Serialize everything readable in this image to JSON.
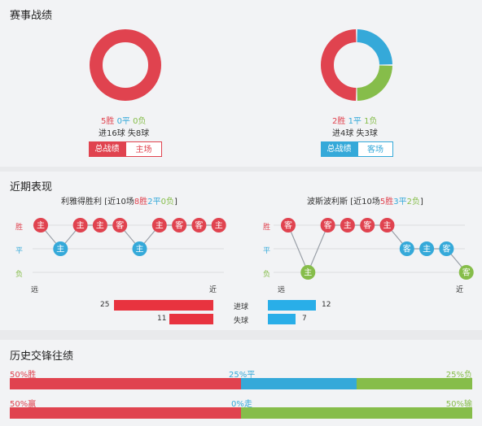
{
  "colors": {
    "win": "#e0434f",
    "draw": "#35a9d9",
    "loss": "#86bd4a"
  },
  "record": {
    "title": "赛事战绩",
    "left": {
      "wins": "5胜",
      "draws": "0平",
      "losses": "0负",
      "goals": "进16球 失8球",
      "tab_total": "总战绩",
      "tab_side": "主场",
      "donut": {
        "win": 5,
        "draw": 0,
        "loss": 0
      }
    },
    "right": {
      "wins": "2胜",
      "draws": "1平",
      "losses": "1负",
      "goals": "进4球 失3球",
      "tab_total": "总战绩",
      "tab_side": "客场",
      "donut": {
        "win": 2,
        "draw": 1,
        "loss": 1
      }
    }
  },
  "recent": {
    "title": "近期表现",
    "axis": {
      "win": "胜",
      "draw": "平",
      "loss": "负"
    },
    "far": "远",
    "near": "近",
    "left": {
      "team": "利雅得胜利",
      "summary_prefix": "[近10场",
      "wins": "8胜",
      "draws": "2平",
      "losses": "0负",
      "summary_suffix": "]",
      "matches": [
        {
          "result": "win",
          "venue": "主"
        },
        {
          "result": "draw",
          "venue": "主"
        },
        {
          "result": "win",
          "venue": "主"
        },
        {
          "result": "win",
          "venue": "主"
        },
        {
          "result": "win",
          "venue": "客"
        },
        {
          "result": "draw",
          "venue": "主"
        },
        {
          "result": "win",
          "venue": "主"
        },
        {
          "result": "win",
          "venue": "客"
        },
        {
          "result": "win",
          "venue": "客"
        },
        {
          "result": "win",
          "venue": "主"
        }
      ]
    },
    "right": {
      "team": "波斯波利斯",
      "summary_prefix": "[近10场",
      "wins": "5胜",
      "draws": "3平",
      "losses": "2负",
      "summary_suffix": "]",
      "matches": [
        {
          "result": "win",
          "venue": "客"
        },
        {
          "result": "loss",
          "venue": "主"
        },
        {
          "result": "win",
          "venue": "客"
        },
        {
          "result": "win",
          "venue": "主"
        },
        {
          "result": "win",
          "venue": "客"
        },
        {
          "result": "win",
          "venue": "主"
        },
        {
          "result": "draw",
          "venue": "客"
        },
        {
          "result": "draw",
          "venue": "主"
        },
        {
          "result": "draw",
          "venue": "客"
        },
        {
          "result": "loss",
          "venue": "客"
        }
      ]
    },
    "goals": {
      "scored_label": "进球",
      "conceded_label": "失球",
      "left_scored": 25,
      "left_conceded": 11,
      "right_scored": 12,
      "right_conceded": 7
    }
  },
  "history": {
    "title": "历史交锋往绩",
    "row1": {
      "left": "50%胜",
      "mid": "25%平",
      "right": "25%负",
      "seg": [
        50,
        25,
        25
      ]
    },
    "row2": {
      "left": "50%赢",
      "mid": "0%走",
      "right": "50%输",
      "seg": [
        50,
        0,
        50
      ]
    }
  }
}
